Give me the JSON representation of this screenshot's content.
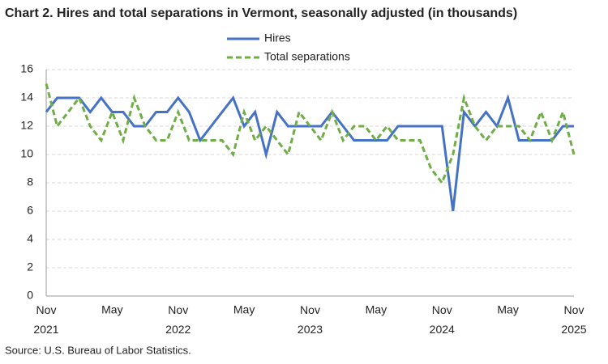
{
  "chart_data": {
    "type": "line",
    "title": "Chart 2. Hires and total separations in Vermont, seasonally adjusted (in thousands)",
    "source": "Source: U.S. Bureau of Labor Statistics.",
    "categories": [
      "Nov 2021",
      null,
      null,
      null,
      null,
      null,
      "May",
      null,
      null,
      null,
      null,
      null,
      "Nov 2022",
      null,
      null,
      null,
      null,
      null,
      "May",
      null,
      null,
      null,
      null,
      null,
      "Nov 2023",
      null,
      null,
      null,
      null,
      null,
      "May",
      null,
      null,
      null,
      null,
      null,
      "Nov 2024",
      null,
      null,
      null,
      null,
      null,
      "May",
      null,
      null,
      null,
      null,
      null,
      "Nov 2025"
    ],
    "series": [
      {
        "name": "Hires",
        "color": "#4472c4",
        "dash": false,
        "values": [
          13,
          14,
          14,
          14,
          13,
          14,
          13,
          13,
          12,
          12,
          13,
          13,
          14,
          13,
          11,
          12,
          13,
          14,
          12,
          13,
          10,
          13,
          12,
          12,
          12,
          12,
          13,
          12,
          11,
          11,
          11,
          11,
          12,
          12,
          12,
          12,
          12,
          6,
          13,
          12,
          13,
          12,
          14,
          11,
          11,
          11,
          11,
          12,
          12
        ]
      },
      {
        "name": "Total separations",
        "color": "#70ad47",
        "dash": true,
        "values": [
          15,
          12,
          13,
          14,
          12,
          11,
          13,
          11,
          14,
          12,
          11,
          11,
          13,
          11,
          11,
          11,
          11,
          10,
          13,
          11,
          12,
          11,
          10,
          13,
          12,
          11,
          13,
          11,
          12,
          12,
          11,
          12,
          11,
          11,
          11,
          9,
          8,
          10,
          14,
          12,
          11,
          12,
          12,
          12,
          11,
          13,
          11,
          13,
          10
        ]
      }
    ],
    "ylim": [
      0,
      16
    ],
    "yticks": [
      0,
      2,
      4,
      6,
      8,
      10,
      12,
      14,
      16
    ],
    "grid": true,
    "legend": "top"
  }
}
